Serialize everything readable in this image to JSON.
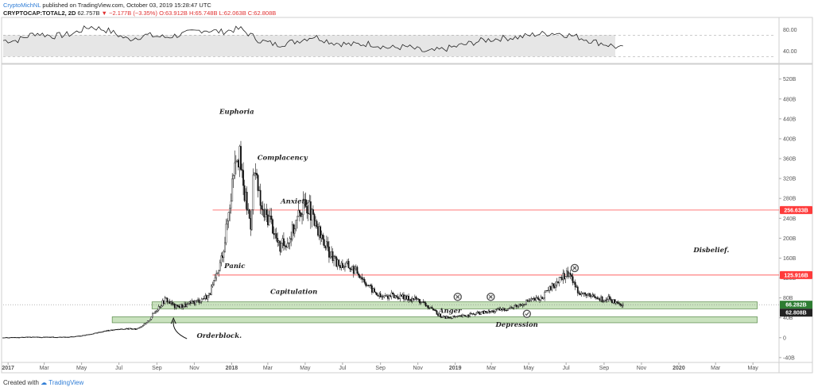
{
  "header": {
    "user": "CryptoMichNL",
    "published": "published on TradingView.com, October 03, 2019 15:28:47 UTC",
    "symbol": "CRYPTOCAP:TOTAL2, 2D",
    "last": "62.757B",
    "arrow": "▼",
    "change": "−2.177B (−3.35%)",
    "ohlc": "O:63.912B H:65.748B L:62.063B C:62.808B"
  },
  "footer": {
    "created_with": "Created with",
    "brand": "TradingView"
  },
  "colors": {
    "candle": "#111111",
    "level_line": "#ff4d4d",
    "level_label_bg": "#ff3b3b",
    "zone_fill": "#b7d8a8",
    "zone_stroke": "#5a8a4a",
    "current_label_bg": "#2e7d32",
    "close_label_bg": "#222222",
    "rsi_line": "#222222",
    "rsi_band": "#e6e6e6"
  },
  "chart_data": [
    {
      "type": "line",
      "name": "RSI panel",
      "y_ticks": [
        "80.00",
        "40.00"
      ],
      "ylim": [
        20,
        100
      ],
      "x_range": [
        "2016-12-24",
        "2019-10-03"
      ],
      "x": [
        "2017-01",
        "2017-02",
        "2017-03",
        "2017-04",
        "2017-05",
        "2017-06",
        "2017-07",
        "2017-08",
        "2017-09",
        "2017-10",
        "2017-11",
        "2017-12",
        "2018-01",
        "2018-02",
        "2018-03",
        "2018-04",
        "2018-05",
        "2018-06",
        "2018-07",
        "2018-08",
        "2018-09",
        "2018-10",
        "2018-11",
        "2018-12",
        "2019-01",
        "2019-02",
        "2019-03",
        "2019-04",
        "2019-05",
        "2019-06",
        "2019-07",
        "2019-08",
        "2019-09",
        "2019-10"
      ],
      "values": [
        60,
        74,
        68,
        72,
        86,
        78,
        62,
        70,
        66,
        72,
        80,
        76,
        82,
        60,
        52,
        58,
        68,
        56,
        52,
        54,
        46,
        48,
        38,
        44,
        52,
        60,
        64,
        66,
        72,
        74,
        68,
        58,
        50,
        40
      ]
    },
    {
      "type": "candlestick",
      "name": "CRYPTOCAP:TOTAL2, 2D",
      "y_ticks": [
        "520B",
        "480B",
        "440B",
        "400B",
        "360B",
        "320B",
        "280B",
        "240B",
        "200B",
        "160B",
        "120B",
        "80B",
        "40B",
        "0",
        "-40B"
      ],
      "y_tick_values": [
        520,
        480,
        440,
        400,
        360,
        320,
        280,
        240,
        200,
        160,
        120,
        80,
        40,
        0,
        -40
      ],
      "ylim": [
        -45,
        545
      ],
      "x_ticks": [
        "2017",
        "Mar",
        "May",
        "Jul",
        "Sep",
        "Nov",
        "2018",
        "Mar",
        "May",
        "Jul",
        "Sep",
        "Nov",
        "2019",
        "Mar",
        "May",
        "Jul",
        "Sep",
        "Nov",
        "2020",
        "Mar",
        "May"
      ],
      "x_tick_dates": [
        "2017-01-01",
        "2017-03-01",
        "2017-05-01",
        "2017-07-01",
        "2017-09-01",
        "2017-11-01",
        "2018-01-01",
        "2018-03-01",
        "2018-05-01",
        "2018-07-01",
        "2018-09-01",
        "2018-11-01",
        "2019-01-01",
        "2019-03-01",
        "2019-05-01",
        "2019-07-01",
        "2019-09-01",
        "2019-11-01",
        "2020-01-01",
        "2020-03-01",
        "2020-05-01"
      ],
      "x_range": [
        "2016-12-24",
        "2020-06-10"
      ],
      "series_dates": [
        "2016-12-24",
        "2017-02-01",
        "2017-03-15",
        "2017-04-20",
        "2017-05-15",
        "2017-06-10",
        "2017-06-25",
        "2017-07-15",
        "2017-07-28",
        "2017-08-15",
        "2017-09-01",
        "2017-09-15",
        "2017-10-01",
        "2017-10-20",
        "2017-11-10",
        "2017-11-25",
        "2017-12-10",
        "2017-12-20",
        "2018-01-01",
        "2018-01-07",
        "2018-01-14",
        "2018-01-20",
        "2018-02-01",
        "2018-02-06",
        "2018-02-20",
        "2018-03-05",
        "2018-03-20",
        "2018-04-05",
        "2018-04-15",
        "2018-04-25",
        "2018-05-05",
        "2018-05-15",
        "2018-06-01",
        "2018-06-20",
        "2018-07-10",
        "2018-07-28",
        "2018-08-15",
        "2018-09-01",
        "2018-09-20",
        "2018-10-10",
        "2018-10-30",
        "2018-11-15",
        "2018-11-25",
        "2018-12-10",
        "2018-12-25",
        "2019-01-10",
        "2019-01-25",
        "2019-02-10",
        "2019-02-25",
        "2019-03-15",
        "2019-04-01",
        "2019-04-15",
        "2019-05-01",
        "2019-05-20",
        "2019-06-10",
        "2019-06-25",
        "2019-07-05",
        "2019-07-20",
        "2019-08-05",
        "2019-08-25",
        "2019-09-10",
        "2019-09-20",
        "2019-10-03"
      ],
      "series_values": [
        0,
        1,
        1,
        2,
        7,
        14,
        16,
        18,
        17,
        29,
        58,
        78,
        62,
        66,
        76,
        86,
        130,
        190,
        300,
        380,
        360,
        300,
        230,
        340,
        250,
        240,
        180,
        200,
        230,
        260,
        270,
        230,
        190,
        150,
        145,
        130,
        100,
        82,
        85,
        80,
        78,
        65,
        55,
        42,
        40,
        43,
        46,
        50,
        52,
        56,
        60,
        66,
        75,
        78,
        105,
        120,
        132,
        95,
        84,
        78,
        78,
        68,
        62.8
      ],
      "levels": [
        {
          "label": "256.633B",
          "value": 256.633
        },
        {
          "label": "125.916B",
          "value": 125.916
        }
      ],
      "zones": [
        {
          "from_date": "2017-08-24",
          "to_date": "2019-10-03",
          "low": 58,
          "high": 72
        },
        {
          "from_date": "2017-06-20",
          "to_date": "2019-10-03",
          "low": 30,
          "high": 42
        }
      ],
      "current_price_label": "66.282B",
      "current_price": 66.282,
      "close_label": "62.808B",
      "close": 62.808,
      "annotations": [
        {
          "text": "Euphoria",
          "date": "2017-12-12",
          "value": 450
        },
        {
          "text": "Complacency",
          "date": "2018-02-12",
          "value": 358
        },
        {
          "text": "Anxiety",
          "date": "2018-03-22",
          "value": 270
        },
        {
          "text": "Panic",
          "date": "2017-12-20",
          "value": 140
        },
        {
          "text": "Capitulation",
          "date": "2018-03-05",
          "value": 88
        },
        {
          "text": "Anger",
          "date": "2018-12-05",
          "value": 50
        },
        {
          "text": "Depression",
          "date": "2019-03-08",
          "value": 22
        },
        {
          "text": "Orderblock.",
          "date": "2017-11-05",
          "value": 0
        },
        {
          "text": "Disbelief.",
          "date": "2020-01-25",
          "value": 172
        }
      ],
      "markers": [
        {
          "kind": "x",
          "date": "2019-01-05",
          "value": 82
        },
        {
          "kind": "x",
          "date": "2019-02-28",
          "value": 82
        },
        {
          "kind": "check",
          "date": "2019-04-28",
          "value": 48
        },
        {
          "kind": "x",
          "date": "2019-07-15",
          "value": 140
        }
      ]
    }
  ]
}
